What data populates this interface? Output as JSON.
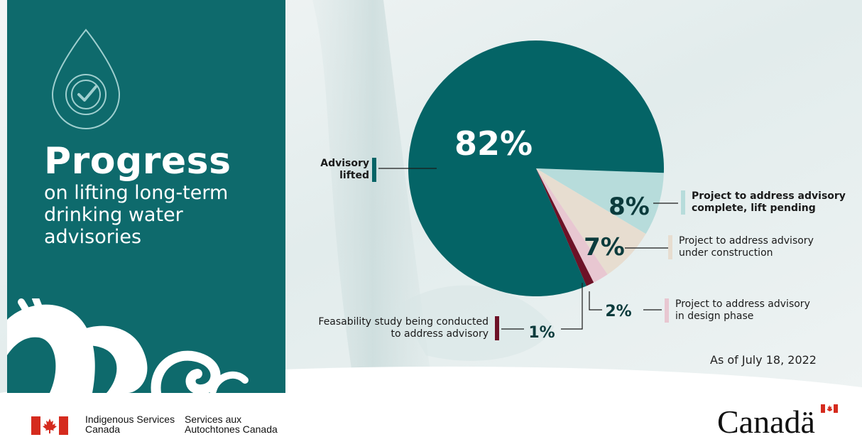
{
  "title": {
    "main": "Progress",
    "sub": "on lifting long-term drinking water advisories"
  },
  "as_of": "As of July 18, 2022",
  "chart_data": {
    "type": "pie",
    "slices": [
      {
        "key": "lifted",
        "label": "Advisory lifted",
        "pct_label": "82%",
        "value": 82,
        "color": "#046466"
      },
      {
        "key": "complete",
        "label": "Project to address advisory complete, lift pending",
        "pct_label": "8%",
        "value": 8,
        "color": "#b7dcdb"
      },
      {
        "key": "construction",
        "label": "Project to address advisory under construction",
        "pct_label": "7%",
        "value": 7,
        "color": "#e7ddd0"
      },
      {
        "key": "design",
        "label": "Project to address advisory in design phase",
        "pct_label": "2%",
        "value": 2,
        "color": "#e8c7d1"
      },
      {
        "key": "feasibility",
        "label": "Feasability study being conducted to address advisory",
        "pct_label": "1%",
        "value": 1,
        "color": "#6d1227"
      }
    ]
  },
  "labels": {
    "lifted_line1": "Advisory",
    "lifted_line2": "lifted",
    "complete_line1": "Project to address advisory",
    "complete_line2": "complete, lift pending",
    "construction_line1": "Project to address advisory",
    "construction_line2": "under construction",
    "design_line1": "Project to address advisory",
    "design_line2": "in design phase",
    "feasibility_line1": "Feasability study being conducted",
    "feasibility_line2": "to address advisory"
  },
  "footer": {
    "dept_en_line1": "Indigenous Services",
    "dept_en_line2": "Canada",
    "dept_fr_line1": "Services aux",
    "dept_fr_line2": "Autochtones Canada",
    "wordmark": "Canadä"
  },
  "colors": {
    "panel": "#0e6a6c",
    "accent_teal": "#046466",
    "flag_red": "#d52b1e"
  },
  "icons": [
    "water-drop-check-icon",
    "canada-flag-icon"
  ]
}
